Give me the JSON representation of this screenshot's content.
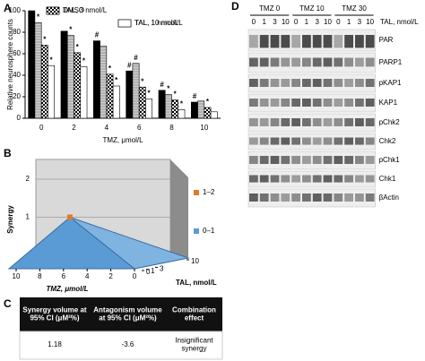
{
  "chart_data": [
    {
      "type": "bar",
      "panel": "A",
      "ylabel": "Relative neurosphere counts",
      "xlabel": "TMZ, μmol/L",
      "categories": [
        "0",
        "2",
        "4",
        "6",
        "8",
        "10"
      ],
      "ylim": [
        0,
        100
      ],
      "yticks": [
        0,
        20,
        40,
        60,
        80,
        100
      ],
      "series": [
        {
          "name": "DMSO",
          "color": "#000000",
          "pattern": "solid",
          "values": [
            100,
            81,
            72,
            44,
            26,
            15
          ],
          "marks": [
            null,
            null,
            "#",
            "#",
            "#",
            "#"
          ]
        },
        {
          "name": "TAL, 1 nmol/L",
          "color": "#b0b0b0",
          "pattern": "hatch",
          "values": [
            89,
            77,
            67,
            51,
            22,
            16
          ],
          "marks": [
            "*",
            "*",
            null,
            "#",
            "*",
            null
          ]
        },
        {
          "name": "TAL, 3 nmol/L",
          "color": "#ffffff",
          "pattern": "check",
          "values": [
            68,
            61,
            41,
            29,
            17,
            10
          ],
          "marks": [
            "*",
            "*",
            "*",
            "*",
            "*",
            "*"
          ]
        },
        {
          "name": "TAL, 10 nmol/L",
          "color": "#ffffff",
          "pattern": "solid",
          "values": [
            49,
            48,
            30,
            18,
            8,
            6
          ],
          "marks": [
            "*",
            "*",
            "*",
            "*",
            "*",
            null
          ]
        }
      ]
    },
    {
      "type": "surface3d",
      "panel": "B",
      "zlabel": "Synergy",
      "xlabel": "TMZ, μmol/L",
      "ylabel": "TAL, nmol/L",
      "zlim": [
        0,
        2
      ],
      "zticks": [
        1,
        2
      ],
      "xticks": [
        10,
        8,
        6,
        4,
        2,
        0
      ],
      "yticks": [
        0,
        1,
        3,
        10
      ],
      "legend": [
        {
          "name": "1–2",
          "color": "#e07b2a"
        },
        {
          "name": "0–1",
          "color": "#5b9bd5"
        }
      ]
    }
  ],
  "table": {
    "panel": "C",
    "header": [
      "Synergy volume at 95% CI (μM²%)",
      "Antagonism volume at 95% CI (μM²%)",
      "Combination effect"
    ],
    "rows": [
      [
        "1.18",
        "-3.6",
        "Insignificant synergy"
      ]
    ]
  },
  "blot": {
    "panel": "D",
    "lane_axis": "TAL, nmol/L",
    "groups": [
      {
        "label": "TMZ 0",
        "lanes": [
          "0",
          "1",
          "3",
          "10"
        ]
      },
      {
        "label": "TMZ 10",
        "lanes": [
          "0",
          "1",
          "3",
          "10"
        ]
      },
      {
        "label": "TMZ 30",
        "lanes": [
          "0",
          "1",
          "3",
          "10"
        ]
      }
    ],
    "rows": [
      "PAR",
      "PARP1",
      "pKAP1",
      "KAP1",
      "pChk2",
      "Chk2",
      "pChk1",
      "Chk1",
      "βActin"
    ]
  }
}
